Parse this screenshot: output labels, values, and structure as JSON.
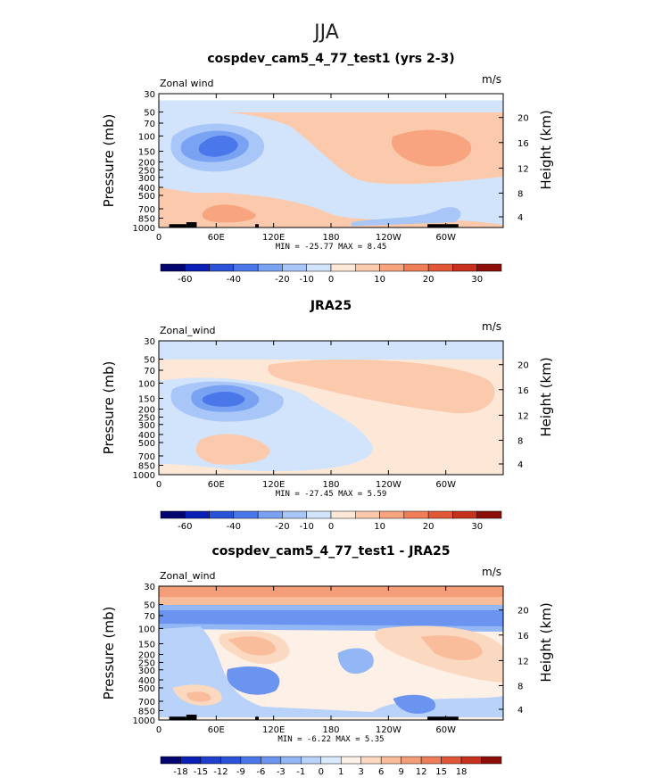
{
  "season_title": "JJA",
  "panels": [
    {
      "title": "cospdev_cam5_4_77_test1 (yrs 2-3)",
      "variable_label": "Zonal wind",
      "units_label": "m/s",
      "stats_text": "MIN = -25.77  MAX =   8.45",
      "colorbar_labels": [
        "-60",
        "-40",
        "-20",
        "-10",
        "0",
        "10",
        "20",
        "30"
      ],
      "colorbar_colors": [
        "#04046e",
        "#0b1fb4",
        "#2a52d8",
        "#4a78ea",
        "#7aa2f2",
        "#a8c6f7",
        "#d2e4fb",
        "#fde7d6",
        "#fbc9ab",
        "#f7a47f",
        "#f07e59",
        "#e25737",
        "#c7301c",
        "#8b0f08"
      ]
    },
    {
      "title": "JRA25",
      "variable_label": "Zonal_wind",
      "units_label": "m/s",
      "stats_text": "MIN = -27.45  MAX =   5.59",
      "colorbar_labels": [
        "-60",
        "-40",
        "-20",
        "-10",
        "0",
        "10",
        "20",
        "30"
      ],
      "colorbar_colors": [
        "#04046e",
        "#0b1fb4",
        "#2a52d8",
        "#4a78ea",
        "#7aa2f2",
        "#a8c6f7",
        "#d2e4fb",
        "#fde7d6",
        "#fbc9ab",
        "#f7a47f",
        "#f07e59",
        "#e25737",
        "#c7301c",
        "#8b0f08"
      ]
    },
    {
      "title": "cospdev_cam5_4_77_test1 - JRA25",
      "variable_label": "Zonal_wind",
      "units_label": "m/s",
      "stats_text": "MIN =  -6.22  MAX =   5.35",
      "colorbar_labels": [
        "-18",
        "-15",
        "-12",
        "-9",
        "-6",
        "-3",
        "-1",
        "0",
        "1",
        "3",
        "6",
        "9",
        "12",
        "15",
        "18"
      ],
      "colorbar_colors": [
        "#04046e",
        "#0b1fb4",
        "#1f3fcc",
        "#2a52d8",
        "#4a78ea",
        "#6a94f0",
        "#93b6f5",
        "#b9d2f9",
        "#dbe9fc",
        "#fdf0e6",
        "#fbd8c0",
        "#f9bd9c",
        "#f49e79",
        "#ee7e5a",
        "#e25737",
        "#c7301c",
        "#8b0f08"
      ]
    }
  ],
  "chart_data": {
    "type": "heatmap",
    "description_fields": "zonal-mean zonal wind cross sections, longitude vs pressure",
    "x_ticks": [
      "0",
      "60E",
      "120E",
      "180",
      "120W",
      "60W"
    ],
    "y_left_label": "Pressure (mb)",
    "y_left_ticks": [
      "30",
      "50",
      "70",
      "100",
      "150",
      "200",
      "250",
      "300",
      "400",
      "500",
      "700",
      "850",
      "1000"
    ],
    "y_right_label": "Height (km)",
    "y_right_ticks": [
      "20",
      "16",
      "12",
      "8",
      "4"
    ]
  }
}
